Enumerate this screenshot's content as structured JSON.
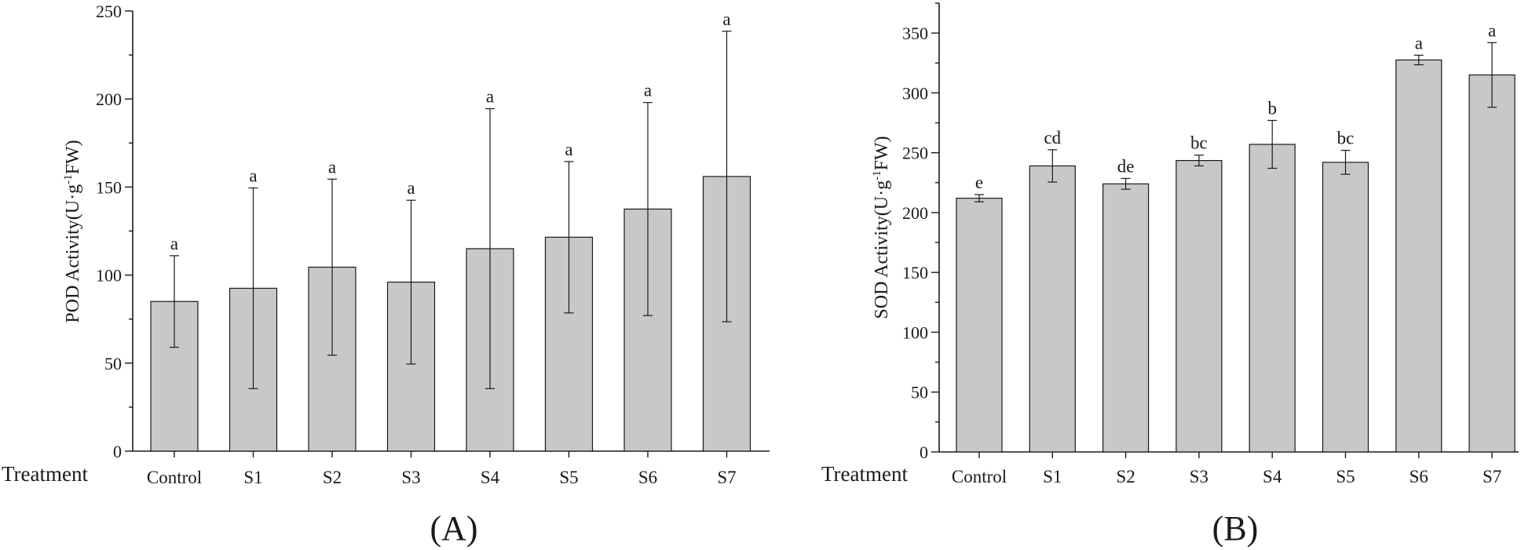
{
  "chart_data": [
    {
      "type": "bar",
      "panel_label": "(A)",
      "title": "",
      "xlabel": "Treatment",
      "ylabel": {
        "main": "POD Activity(U·g",
        "sup": "-1",
        "tail": "FW)"
      },
      "ylim": [
        0,
        250
      ],
      "yticks": [
        0,
        50,
        100,
        150,
        200,
        250
      ],
      "categories": [
        "Control",
        "S1",
        "S2",
        "S3",
        "S4",
        "S5",
        "S6",
        "S7"
      ],
      "values": [
        85,
        92.5,
        104.5,
        96,
        115,
        121.5,
        137.5,
        156
      ],
      "errors": [
        26,
        57,
        50,
        46.5,
        79.5,
        43,
        60.5,
        82.5
      ],
      "significance": [
        "a",
        "a",
        "a",
        "a",
        "a",
        "a",
        "a",
        "a"
      ]
    },
    {
      "type": "bar",
      "panel_label": "(B)",
      "title": "",
      "xlabel": "Treatment",
      "ylabel": {
        "main": "SOD Activity(U·g",
        "sup": "-1",
        "tail": "FW)"
      },
      "ylim": [
        0,
        375
      ],
      "yticks": [
        0,
        50,
        100,
        150,
        200,
        250,
        300,
        350
      ],
      "categories": [
        "Control",
        "S1",
        "S2",
        "S3",
        "S4",
        "S5",
        "S6",
        "S7"
      ],
      "values": [
        212,
        239,
        224,
        243.5,
        257,
        242,
        327.5,
        315
      ],
      "errors": [
        3,
        13.5,
        4.5,
        4.5,
        20,
        10,
        4,
        27
      ],
      "significance": [
        "e",
        "cd",
        "de",
        "bc",
        "b",
        "bc",
        "a",
        "a"
      ]
    }
  ]
}
